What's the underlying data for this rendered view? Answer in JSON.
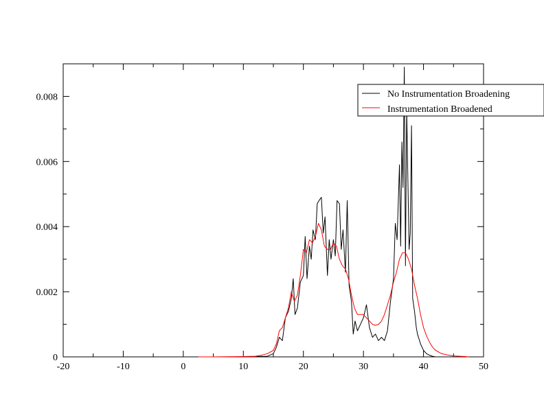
{
  "chart_data": {
    "type": "line",
    "title": "",
    "xlabel": "",
    "ylabel": "",
    "xlim": [
      -20,
      50
    ],
    "ylim": [
      0,
      0.009
    ],
    "grid": false,
    "legend_position": "top-right",
    "x_ticks": [
      -20,
      -10,
      0,
      10,
      20,
      30,
      40,
      50
    ],
    "x_tick_labels": [
      "-20",
      "-10",
      "0",
      "10",
      "20",
      "30",
      "40",
      "50"
    ],
    "y_ticks": [
      0,
      0.002,
      0.004,
      0.006,
      0.008
    ],
    "y_tick_labels": [
      "0",
      "0.002",
      "0.004",
      "0.006",
      "0.008"
    ],
    "series": [
      {
        "name": "No Instrumentation  Broadening",
        "color": "#000000",
        "x": [
          2.5,
          5,
          10,
          14,
          15,
          15.5,
          16,
          16.5,
          17,
          17.5,
          18,
          18.3,
          18.6,
          19,
          19.5,
          20,
          20.3,
          20.6,
          21,
          21.3,
          21.6,
          22,
          22.3,
          22.6,
          23,
          23.3,
          23.6,
          24,
          24.3,
          24.6,
          25,
          25.3,
          25.6,
          26,
          26.3,
          26.6,
          27,
          27.3,
          27.6,
          28,
          28.3,
          28.6,
          29,
          29.5,
          30,
          30.5,
          31,
          31.5,
          32,
          32.5,
          33,
          33.5,
          34,
          34.5,
          35,
          35.3,
          35.6,
          36,
          36.2,
          36.4,
          36.6,
          36.8,
          37,
          37.2,
          37.4,
          37.6,
          37.8,
          38,
          38.2,
          38.5,
          38.8,
          39,
          39.5,
          40,
          40.5,
          41,
          41.5,
          42,
          42.5
        ],
        "y": [
          0,
          0,
          0,
          2e-05,
          0.0001,
          0.0003,
          0.0006,
          0.0005,
          0.0012,
          0.0014,
          0.0018,
          0.0024,
          0.0013,
          0.0015,
          0.0023,
          0.0025,
          0.0037,
          0.0024,
          0.0034,
          0.003,
          0.0039,
          0.0036,
          0.0047,
          0.0048,
          0.0049,
          0.0038,
          0.0043,
          0.0025,
          0.0036,
          0.003,
          0.0036,
          0.0031,
          0.0048,
          0.0047,
          0.0033,
          0.0039,
          0.0026,
          0.0048,
          0.0022,
          0.0017,
          0.0007,
          0.0011,
          0.0008,
          0.001,
          0.0012,
          0.0016,
          0.0009,
          0.0006,
          0.0007,
          0.0005,
          0.0006,
          0.0005,
          0.0008,
          0.0017,
          0.0024,
          0.0041,
          0.0036,
          0.0059,
          0.0034,
          0.0066,
          0.0052,
          0.0089,
          0.0028,
          0.0076,
          0.0055,
          0.0033,
          0.0038,
          0.0071,
          0.0018,
          0.0014,
          0.0009,
          0.0007,
          0.0004,
          0.0002,
          0.0001,
          5e-05,
          2e-05,
          0,
          0
        ]
      },
      {
        "name": "Instrumentation Broadened",
        "color": "#ff0000",
        "x": [
          2.5,
          5,
          10,
          12,
          13,
          14,
          15,
          15.5,
          16,
          16.5,
          17,
          17.5,
          18,
          18.5,
          19,
          19.5,
          20,
          20.5,
          21,
          21.5,
          22,
          22.5,
          23,
          23.5,
          24,
          24.5,
          25,
          25.5,
          26,
          26.5,
          27,
          27.5,
          28,
          28.5,
          29,
          29.5,
          30,
          30.5,
          31,
          31.5,
          32,
          32.5,
          33,
          33.5,
          34,
          34.5,
          35,
          35.5,
          36,
          36.5,
          37,
          37.5,
          38,
          38.5,
          39,
          39.5,
          40,
          40.5,
          41,
          41.5,
          42,
          43,
          44,
          45,
          46,
          47,
          47.5
        ],
        "y": [
          0,
          0,
          1e-05,
          2e-05,
          5e-05,
          0.0001,
          0.0002,
          0.0004,
          0.0008,
          0.0009,
          0.0012,
          0.0015,
          0.002,
          0.0017,
          0.0019,
          0.0025,
          0.0033,
          0.0032,
          0.0036,
          0.0035,
          0.0037,
          0.0041,
          0.0039,
          0.0034,
          0.0033,
          0.0033,
          0.0035,
          0.0034,
          0.003,
          0.0028,
          0.0027,
          0.0024,
          0.0019,
          0.0015,
          0.0013,
          0.0013,
          0.0013,
          0.0012,
          0.0011,
          0.001,
          0.00097,
          0.001,
          0.0011,
          0.0013,
          0.0016,
          0.0019,
          0.0023,
          0.0026,
          0.003,
          0.0032,
          0.0032,
          0.003,
          0.0027,
          0.0022,
          0.0018,
          0.0013,
          0.0009,
          0.00065,
          0.00045,
          0.0003,
          0.0002,
          0.0001,
          6e-05,
          3e-05,
          2e-05,
          1e-05,
          0
        ]
      }
    ]
  }
}
